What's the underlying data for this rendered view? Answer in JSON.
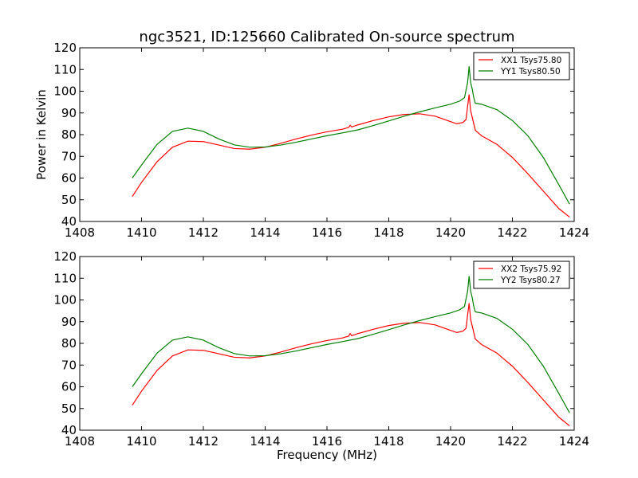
{
  "figure": {
    "title": "ngc3521, ID:125660 Calibrated On-source spectrum"
  },
  "chart_data": [
    {
      "type": "line",
      "title": "ngc3521, ID:125660 Calibrated On-source spectrum",
      "xlabel": "",
      "ylabel": "Power in Kelvin",
      "xlim": [
        1408,
        1424
      ],
      "ylim": [
        40,
        120
      ],
      "xticks": [
        1408,
        1410,
        1412,
        1414,
        1416,
        1418,
        1420,
        1422,
        1424
      ],
      "yticks": [
        40,
        50,
        60,
        70,
        80,
        90,
        100,
        110,
        120
      ],
      "grid": false,
      "legend_position": "top-right",
      "series": [
        {
          "name": "XX1 Tsys75.80",
          "color": "#ff0000",
          "points": [
            [
              1409.7,
              51.5
            ],
            [
              1410.0,
              58.0
            ],
            [
              1410.5,
              67.5
            ],
            [
              1411.0,
              74.2
            ],
            [
              1411.5,
              77.0
            ],
            [
              1412.0,
              76.8
            ],
            [
              1412.5,
              75.2
            ],
            [
              1413.0,
              73.6
            ],
            [
              1413.5,
              73.3
            ],
            [
              1414.0,
              74.2
            ],
            [
              1414.5,
              76.0
            ],
            [
              1415.0,
              78.0
            ],
            [
              1415.5,
              79.8
            ],
            [
              1416.0,
              81.3
            ],
            [
              1416.5,
              82.5
            ],
            [
              1416.7,
              83.3
            ],
            [
              1416.75,
              84.3
            ],
            [
              1416.8,
              83.5
            ],
            [
              1417.0,
              84.5
            ],
            [
              1417.5,
              86.5
            ],
            [
              1418.0,
              88.2
            ],
            [
              1418.5,
              89.3
            ],
            [
              1419.0,
              89.6
            ],
            [
              1419.5,
              88.5
            ],
            [
              1420.0,
              86.0
            ],
            [
              1420.2,
              85.0
            ],
            [
              1420.4,
              85.6
            ],
            [
              1420.5,
              87.0
            ],
            [
              1420.55,
              93.0
            ],
            [
              1420.6,
              98.5
            ],
            [
              1420.65,
              91.0
            ],
            [
              1420.7,
              88.0
            ],
            [
              1420.8,
              82.0
            ],
            [
              1421.0,
              79.5
            ],
            [
              1421.5,
              75.5
            ],
            [
              1422.0,
              69.5
            ],
            [
              1422.5,
              62.0
            ],
            [
              1423.0,
              54.0
            ],
            [
              1423.5,
              46.0
            ],
            [
              1423.85,
              42.0
            ]
          ]
        },
        {
          "name": "YY1 Tsys80.50",
          "color": "#008000",
          "points": [
            [
              1409.7,
              60.0
            ],
            [
              1410.0,
              66.0
            ],
            [
              1410.5,
              75.5
            ],
            [
              1411.0,
              81.5
            ],
            [
              1411.5,
              83.0
            ],
            [
              1412.0,
              81.5
            ],
            [
              1412.5,
              78.0
            ],
            [
              1413.0,
              75.3
            ],
            [
              1413.5,
              74.2
            ],
            [
              1414.0,
              74.3
            ],
            [
              1414.5,
              75.2
            ],
            [
              1415.0,
              76.5
            ],
            [
              1415.5,
              78.0
            ],
            [
              1416.0,
              79.5
            ],
            [
              1416.5,
              80.8
            ],
            [
              1417.0,
              82.2
            ],
            [
              1417.5,
              84.2
            ],
            [
              1418.0,
              86.3
            ],
            [
              1418.5,
              88.5
            ],
            [
              1419.0,
              90.5
            ],
            [
              1419.5,
              92.3
            ],
            [
              1420.0,
              94.0
            ],
            [
              1420.3,
              95.5
            ],
            [
              1420.45,
              97.0
            ],
            [
              1420.55,
              104.0
            ],
            [
              1420.6,
              111.5
            ],
            [
              1420.65,
              104.0
            ],
            [
              1420.7,
              101.0
            ],
            [
              1420.75,
              97.0
            ],
            [
              1420.8,
              94.5
            ],
            [
              1421.0,
              94.0
            ],
            [
              1421.5,
              91.5
            ],
            [
              1422.0,
              86.5
            ],
            [
              1422.5,
              79.5
            ],
            [
              1423.0,
              69.5
            ],
            [
              1423.5,
              57.0
            ],
            [
              1423.85,
              48.0
            ]
          ]
        }
      ]
    },
    {
      "type": "line",
      "title": "",
      "xlabel": "Frequency (MHz)",
      "ylabel": "",
      "xlim": [
        1408,
        1424
      ],
      "ylim": [
        40,
        120
      ],
      "xticks": [
        1408,
        1410,
        1412,
        1414,
        1416,
        1418,
        1420,
        1422,
        1424
      ],
      "yticks": [
        40,
        50,
        60,
        70,
        80,
        90,
        100,
        110,
        120
      ],
      "grid": false,
      "legend_position": "top-right",
      "series": [
        {
          "name": "XX2 Tsys75.92",
          "color": "#ff0000",
          "points": [
            [
              1409.7,
              51.5
            ],
            [
              1410.0,
              58.0
            ],
            [
              1410.5,
              67.5
            ],
            [
              1411.0,
              74.2
            ],
            [
              1411.5,
              77.0
            ],
            [
              1412.0,
              76.8
            ],
            [
              1412.5,
              75.2
            ],
            [
              1413.0,
              73.6
            ],
            [
              1413.5,
              73.3
            ],
            [
              1414.0,
              74.2
            ],
            [
              1414.5,
              76.0
            ],
            [
              1415.0,
              78.0
            ],
            [
              1415.5,
              79.8
            ],
            [
              1416.0,
              81.3
            ],
            [
              1416.5,
              82.5
            ],
            [
              1416.7,
              83.3
            ],
            [
              1416.75,
              84.5
            ],
            [
              1416.8,
              83.5
            ],
            [
              1417.0,
              84.5
            ],
            [
              1417.5,
              86.5
            ],
            [
              1418.0,
              88.2
            ],
            [
              1418.5,
              89.3
            ],
            [
              1419.0,
              89.6
            ],
            [
              1419.5,
              88.5
            ],
            [
              1420.0,
              86.0
            ],
            [
              1420.2,
              85.0
            ],
            [
              1420.4,
              85.6
            ],
            [
              1420.5,
              87.0
            ],
            [
              1420.55,
              93.0
            ],
            [
              1420.6,
              98.5
            ],
            [
              1420.65,
              91.0
            ],
            [
              1420.7,
              88.0
            ],
            [
              1420.8,
              82.0
            ],
            [
              1421.0,
              79.5
            ],
            [
              1421.5,
              75.5
            ],
            [
              1422.0,
              69.5
            ],
            [
              1422.5,
              62.0
            ],
            [
              1423.0,
              54.0
            ],
            [
              1423.5,
              46.0
            ],
            [
              1423.85,
              42.0
            ]
          ]
        },
        {
          "name": "YY2 Tsys80.27",
          "color": "#008000",
          "points": [
            [
              1409.7,
              60.0
            ],
            [
              1410.0,
              66.0
            ],
            [
              1410.5,
              75.5
            ],
            [
              1411.0,
              81.5
            ],
            [
              1411.5,
              83.0
            ],
            [
              1412.0,
              81.5
            ],
            [
              1412.5,
              78.0
            ],
            [
              1413.0,
              75.3
            ],
            [
              1413.5,
              74.2
            ],
            [
              1414.0,
              74.3
            ],
            [
              1414.5,
              75.2
            ],
            [
              1415.0,
              76.5
            ],
            [
              1415.5,
              78.0
            ],
            [
              1416.0,
              79.5
            ],
            [
              1416.5,
              80.8
            ],
            [
              1417.0,
              82.2
            ],
            [
              1417.5,
              84.2
            ],
            [
              1418.0,
              86.3
            ],
            [
              1418.5,
              88.5
            ],
            [
              1419.0,
              90.5
            ],
            [
              1419.5,
              92.3
            ],
            [
              1420.0,
              94.0
            ],
            [
              1420.3,
              95.5
            ],
            [
              1420.45,
              97.0
            ],
            [
              1420.55,
              104.0
            ],
            [
              1420.6,
              111.0
            ],
            [
              1420.65,
              104.0
            ],
            [
              1420.7,
              101.0
            ],
            [
              1420.75,
              97.0
            ],
            [
              1420.8,
              94.5
            ],
            [
              1421.0,
              94.0
            ],
            [
              1421.5,
              91.5
            ],
            [
              1422.0,
              86.5
            ],
            [
              1422.5,
              79.5
            ],
            [
              1423.0,
              69.5
            ],
            [
              1423.5,
              57.0
            ],
            [
              1423.85,
              48.0
            ]
          ]
        }
      ]
    }
  ]
}
